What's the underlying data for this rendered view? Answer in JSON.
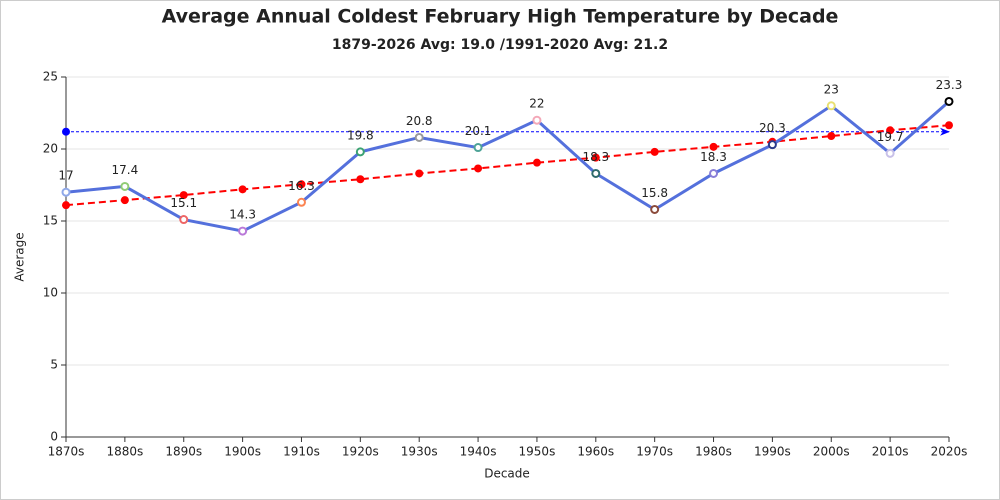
{
  "chart_data": {
    "type": "line",
    "title": "Average Annual Coldest February High Temperature by Decade",
    "subtitle": "1879-2026 Avg: 19.0 /1991-2020 Avg: 21.2",
    "x_label": "Decade",
    "y_label": "Average",
    "categories": [
      "1870s",
      "1880s",
      "1890s",
      "1900s",
      "1910s",
      "1920s",
      "1930s",
      "1940s",
      "1950s",
      "1960s",
      "1970s",
      "1980s",
      "1990s",
      "2000s",
      "2010s",
      "2020s"
    ],
    "series": [
      {
        "color": "#5470dc",
        "dashed": false,
        "data_labels": true,
        "values": [
          17,
          17.4,
          15.1,
          14.3,
          16.3,
          19.8,
          20.8,
          20.1,
          22,
          18.3,
          15.8,
          18.3,
          20.3,
          23,
          19.7,
          23.3
        ],
        "marker_colors": [
          "#8fa8e8",
          "#91cc75",
          "#ee6666",
          "#b978d8",
          "#fc8452",
          "#3ba272",
          "#9a9a9a",
          "#4ea397",
          "#f4a8b8",
          "#2f6b6b",
          "#8b4a3a",
          "#8a7fd8",
          "#2a3a8a",
          "#e8e070",
          "#c8c0e8",
          "#000000"
        ]
      },
      {
        "color": "#ff0000",
        "dashed": true,
        "data_labels": false,
        "values": [
          16.1,
          16.45,
          16.8,
          17.2,
          17.55,
          17.9,
          18.3,
          18.65,
          19.05,
          19.4,
          19.8,
          20.15,
          20.5,
          20.9,
          21.3,
          21.65
        ]
      }
    ],
    "reference_line": {
      "value": 21.2,
      "color": "#0000ff"
    },
    "ylim": [
      0,
      25
    ],
    "yticks": [
      0,
      5,
      10,
      15,
      20,
      25
    ],
    "grid": true
  }
}
